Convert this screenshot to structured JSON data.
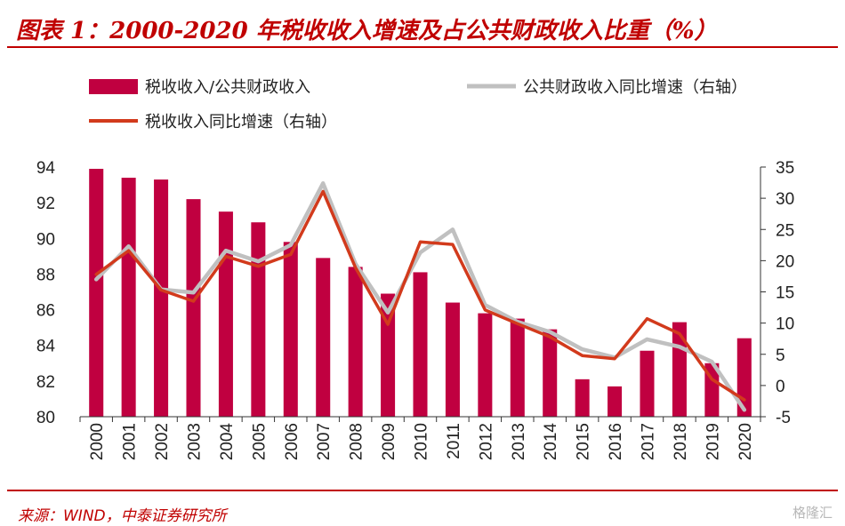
{
  "header": {
    "title": "图表 1：2000-2020 年税收收入增速及占公共财政收入比重（%）"
  },
  "footer": {
    "source": "来源：WIND，中泰证券研究所",
    "watermark": "格隆汇"
  },
  "chart_data": {
    "type": "bar",
    "categories": [
      "2000",
      "2001",
      "2002",
      "2003",
      "2004",
      "2005",
      "2006",
      "2007",
      "2008",
      "2009",
      "2010",
      "2011",
      "2012",
      "2013",
      "2014",
      "2015",
      "2016",
      "2017",
      "2018",
      "2019",
      "2020"
    ],
    "series": [
      {
        "name": "税收收入/公共财政收入",
        "type": "bar",
        "axis": "left",
        "values": [
          93.9,
          93.4,
          93.3,
          92.2,
          91.5,
          90.9,
          89.8,
          88.9,
          88.4,
          86.9,
          88.1,
          86.4,
          85.8,
          85.5,
          84.9,
          82.1,
          81.7,
          83.7,
          85.3,
          83.0,
          84.4
        ]
      },
      {
        "name": "公共财政收入同比增速（右轴）",
        "type": "line",
        "axis": "right",
        "values": [
          17.0,
          22.3,
          15.4,
          14.9,
          21.6,
          19.9,
          22.5,
          32.4,
          19.5,
          11.7,
          21.3,
          25.0,
          12.9,
          10.2,
          8.6,
          5.8,
          4.5,
          7.4,
          6.2,
          3.8,
          -3.9
        ]
      },
      {
        "name": "税收收入同比增速（右轴）",
        "type": "line",
        "axis": "right",
        "values": [
          17.8,
          21.6,
          15.3,
          13.5,
          20.7,
          19.1,
          21.0,
          31.1,
          18.9,
          9.8,
          23.0,
          22.6,
          12.1,
          9.9,
          7.8,
          4.8,
          4.3,
          10.7,
          8.3,
          1.0,
          -2.3
        ]
      }
    ],
    "y_left": {
      "min": 80,
      "max": 94,
      "ticks": [
        80,
        82,
        84,
        86,
        88,
        90,
        92,
        94
      ]
    },
    "y_right": {
      "min": -5,
      "max": 35,
      "ticks": [
        -5,
        0,
        5,
        10,
        15,
        20,
        25,
        30,
        35
      ]
    },
    "colors": {
      "bar": "#c00040",
      "line_gray": "#c0c0c0",
      "line_red": "#d23a1c"
    },
    "grid": false,
    "legend_position": "top"
  }
}
